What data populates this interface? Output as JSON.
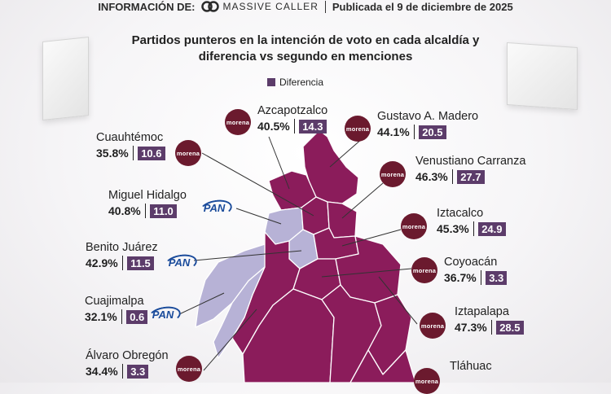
{
  "header": {
    "info_label": "INFORMACIÓN DE:",
    "brand": "MASSIVE CALLER",
    "published": "Publicada el 9 de diciembre de 2025"
  },
  "title": "Partidos punteros en la intención de voto en cada alcaldía y diferencia vs segundo en menciones",
  "legend_label": "Diferencia",
  "colors": {
    "morena": "#8b1c5b",
    "pan": "#b7b2d6",
    "diff_box": "#5c3c6a",
    "morena_logo": "#6b1a2e",
    "pan_logo": "#1a4b9b"
  },
  "party_logos": {
    "morena": "morena",
    "pan": "PAN"
  },
  "alcaldias": [
    {
      "name": "Azcapotzalco",
      "pct": "40.5%",
      "diff": "14.3",
      "party": "morena"
    },
    {
      "name": "Gustavo A. Madero",
      "pct": "44.1%",
      "diff": "20.5",
      "party": "morena"
    },
    {
      "name": "Cuauhtémoc",
      "pct": "35.8%",
      "diff": "10.6",
      "party": "morena"
    },
    {
      "name": "Venustiano Carranza",
      "pct": "46.3%",
      "diff": "27.7",
      "party": "morena"
    },
    {
      "name": "Miguel Hidalgo",
      "pct": "40.8%",
      "diff": "11.0",
      "party": "pan"
    },
    {
      "name": "Iztacalco",
      "pct": "45.3%",
      "diff": "24.9",
      "party": "morena"
    },
    {
      "name": "Benito Juárez",
      "pct": "42.9%",
      "diff": "11.5",
      "party": "pan"
    },
    {
      "name": "Coyoacán",
      "pct": "36.7%",
      "diff": "3.3",
      "party": "morena"
    },
    {
      "name": "Cuajimalpa",
      "pct": "32.1%",
      "diff": "0.6",
      "party": "pan"
    },
    {
      "name": "Iztapalapa",
      "pct": "47.3%",
      "diff": "28.5",
      "party": "morena"
    },
    {
      "name": "Álvaro Obregón",
      "pct": "34.4%",
      "diff": "3.3",
      "party": "morena"
    },
    {
      "name": "Tláhuac",
      "pct": "",
      "diff": "",
      "party": "morena"
    }
  ]
}
